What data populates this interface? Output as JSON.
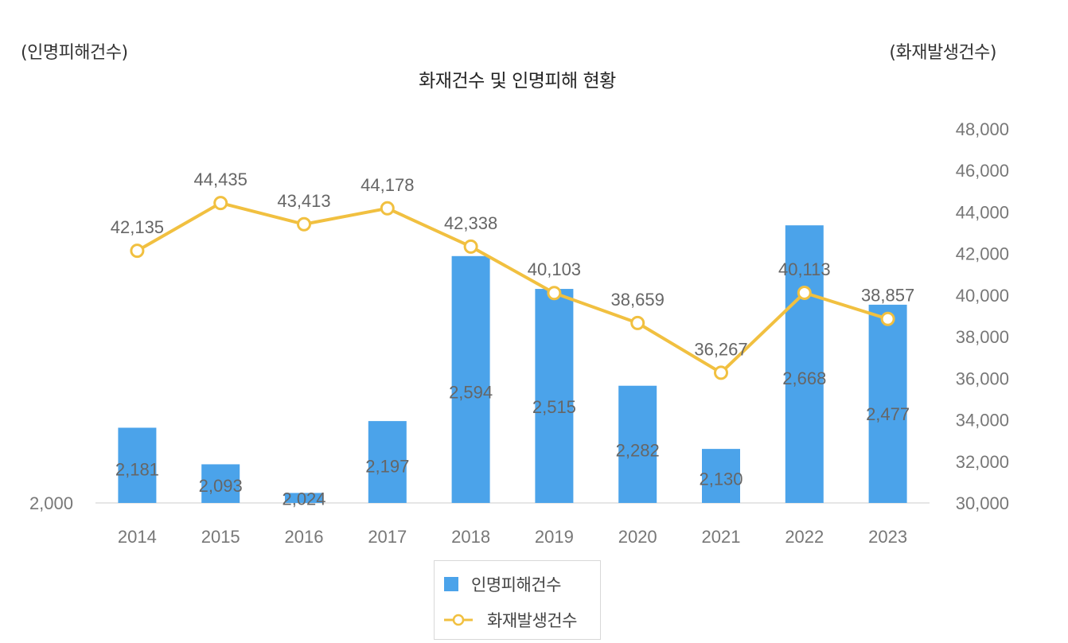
{
  "chart_data": {
    "type": "bar+line",
    "title": "화재건수 및 인명피해 현황",
    "left_axis_label": "(인명피해건수)",
    "right_axis_label": "(화재발생건수)",
    "categories": [
      "2014",
      "2015",
      "2016",
      "2017",
      "2018",
      "2019",
      "2020",
      "2021",
      "2022",
      "2023"
    ],
    "series": [
      {
        "name": "인명피해건수",
        "type": "bar",
        "axis": "left",
        "values": [
          2181,
          2093,
          2024,
          2197,
          2594,
          2515,
          2282,
          2130,
          2668,
          2477
        ],
        "labels": [
          "2,181",
          "2,093",
          "2,024",
          "2,197",
          "2,594",
          "2,515",
          "2,282",
          "2,130",
          "2,668",
          "2,477"
        ]
      },
      {
        "name": "화재발생건수",
        "type": "line",
        "axis": "right",
        "values": [
          42135,
          44435,
          43413,
          44178,
          42338,
          40103,
          38659,
          36267,
          40113,
          38857
        ],
        "labels": [
          "42,135",
          "44,435",
          "43,413",
          "44,178",
          "42,338",
          "40,103",
          "38,659",
          "36,267",
          "40,113",
          "38,857"
        ]
      }
    ],
    "left_axis": {
      "min": 2000,
      "max": 2900,
      "tick_labels": [
        "2,000"
      ]
    },
    "right_axis": {
      "min": 30000,
      "max": 48000,
      "ticks": [
        30000,
        32000,
        34000,
        36000,
        38000,
        40000,
        42000,
        44000,
        46000,
        48000
      ],
      "tick_labels": [
        "30,000",
        "32,000",
        "34,000",
        "36,000",
        "38,000",
        "40,000",
        "42,000",
        "44,000",
        "46,000",
        "48,000"
      ]
    },
    "grid": false,
    "legend_position": "bottom"
  },
  "colors": {
    "bar": "#4ba3ea",
    "line": "#f1c040",
    "marker_fill": "#ffffff",
    "baseline": "#e6e6e6"
  }
}
